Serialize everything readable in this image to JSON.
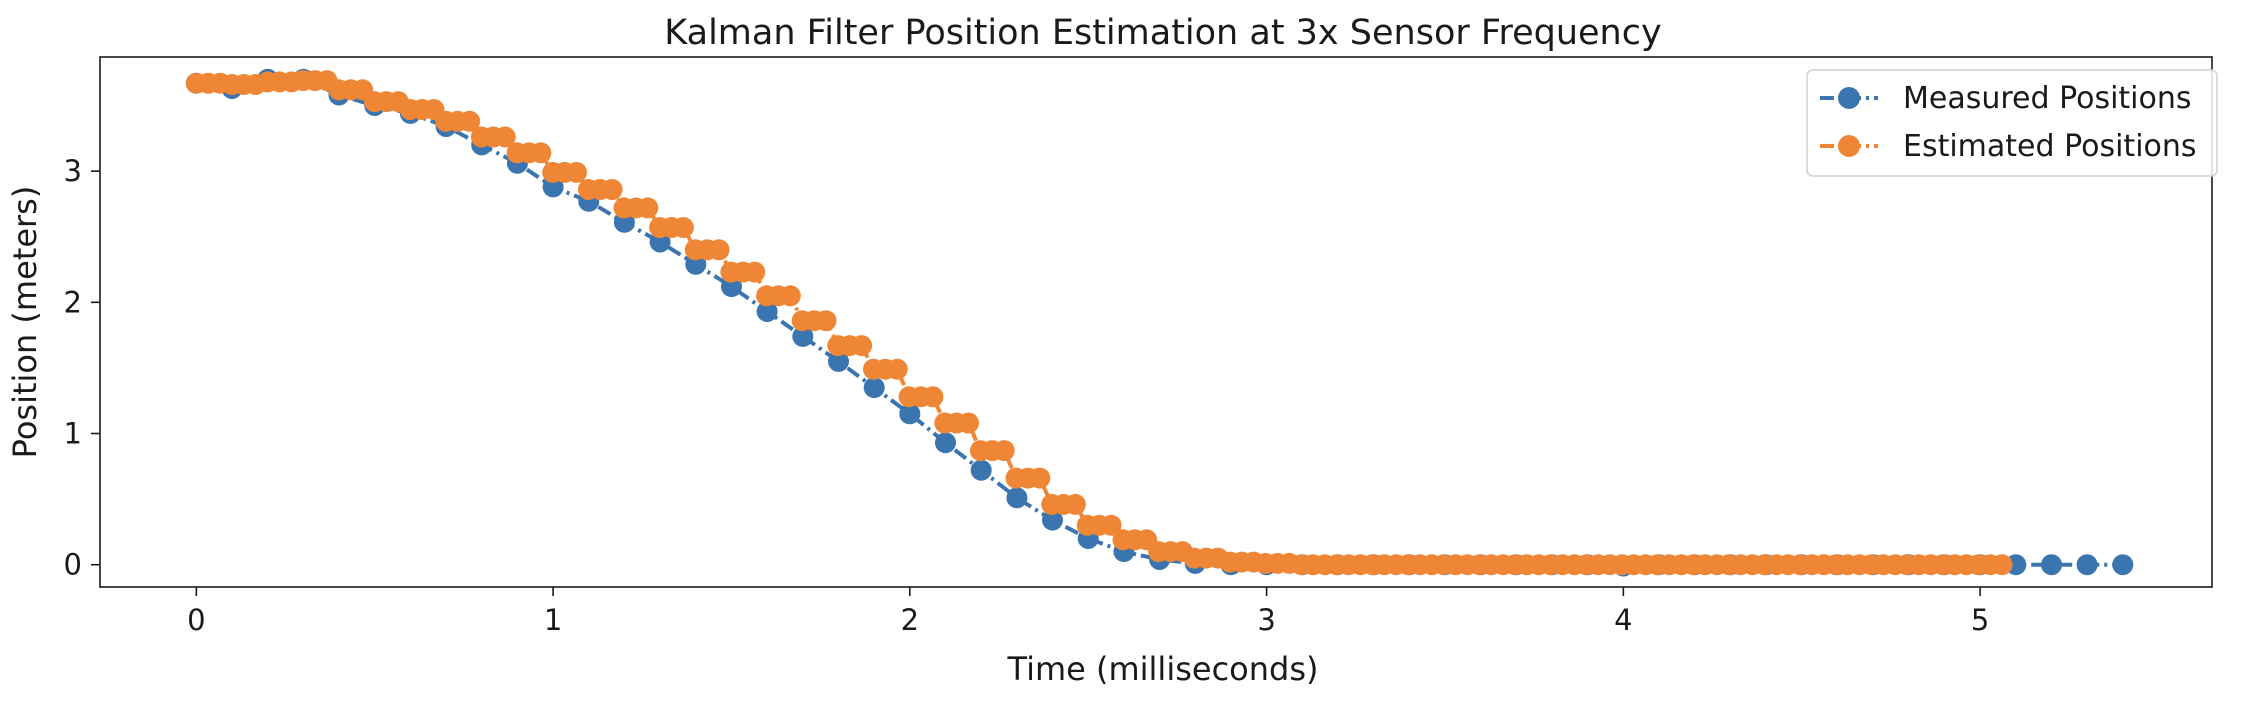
{
  "chart_data": {
    "type": "line",
    "title": "Kalman Filter Position Estimation at 3x Sensor Frequency",
    "xlabel": "Time (milliseconds)",
    "ylabel": "Position (meters)",
    "xlim": [
      -0.27,
      5.65
    ],
    "ylim": [
      -0.17,
      3.87
    ],
    "xticks": [
      0,
      1,
      2,
      3,
      4,
      5
    ],
    "yticks": [
      0,
      1,
      2,
      3
    ],
    "grid": false,
    "legend_position": "top-right",
    "series": [
      {
        "name": "Measured Positions",
        "color": "#3b75af",
        "marker": "circle",
        "line_style": "dash-dot",
        "x": [
          0,
          0.1,
          0.2,
          0.3,
          0.4,
          0.5,
          0.6,
          0.7,
          0.8,
          0.9,
          1.0,
          1.1,
          1.2,
          1.3,
          1.4,
          1.5,
          1.6,
          1.7,
          1.8,
          1.9,
          2.0,
          2.1,
          2.2,
          2.3,
          2.4,
          2.5,
          2.6,
          2.7,
          2.8,
          2.9,
          3.0,
          3.1,
          3.2,
          3.3,
          3.4,
          3.5,
          3.6,
          3.7,
          3.8,
          3.9,
          4.0,
          4.1,
          4.2,
          4.3,
          4.4,
          4.5,
          4.6,
          4.7,
          4.8,
          4.9,
          5.0,
          5.1,
          5.2,
          5.3,
          5.4
        ],
        "y": [
          3.67,
          3.63,
          3.7,
          3.7,
          3.58,
          3.5,
          3.44,
          3.34,
          3.2,
          3.06,
          2.88,
          2.77,
          2.61,
          2.46,
          2.29,
          2.12,
          1.93,
          1.74,
          1.55,
          1.35,
          1.15,
          0.93,
          0.72,
          0.51,
          0.34,
          0.2,
          0.1,
          0.04,
          0.01,
          0.0,
          0.0,
          0.0,
          0.0,
          0.0,
          0.0,
          0.0,
          0.0,
          0.0,
          0.0,
          0.0,
          -0.01,
          0.0,
          0.0,
          0.0,
          0.0,
          0.0,
          0.0,
          0.0,
          0.0,
          0.0,
          0.0,
          0.0,
          0.0,
          0.0,
          0.0
        ]
      },
      {
        "name": "Estimated Positions",
        "color": "#ef8636",
        "marker": "circle",
        "line_style": "dash-dot",
        "estimates_per_measurement": 3,
        "x_start": 0,
        "x_step": 0.0333,
        "segment_values": [
          3.67,
          3.66,
          3.68,
          3.69,
          3.62,
          3.53,
          3.47,
          3.38,
          3.26,
          3.14,
          2.99,
          2.86,
          2.72,
          2.57,
          2.4,
          2.23,
          2.05,
          1.86,
          1.67,
          1.49,
          1.28,
          1.08,
          0.87,
          0.66,
          0.46,
          0.3,
          0.19,
          0.1,
          0.05,
          0.02,
          0.01,
          0.0,
          0.0,
          0.0,
          0.0,
          0.0,
          0.0,
          0.0,
          0.0,
          0.0,
          0.0,
          0.0,
          0.0,
          0.0,
          0.0,
          0.0,
          0.0,
          0.0,
          0.0,
          0.0,
          0.0
        ]
      }
    ]
  }
}
